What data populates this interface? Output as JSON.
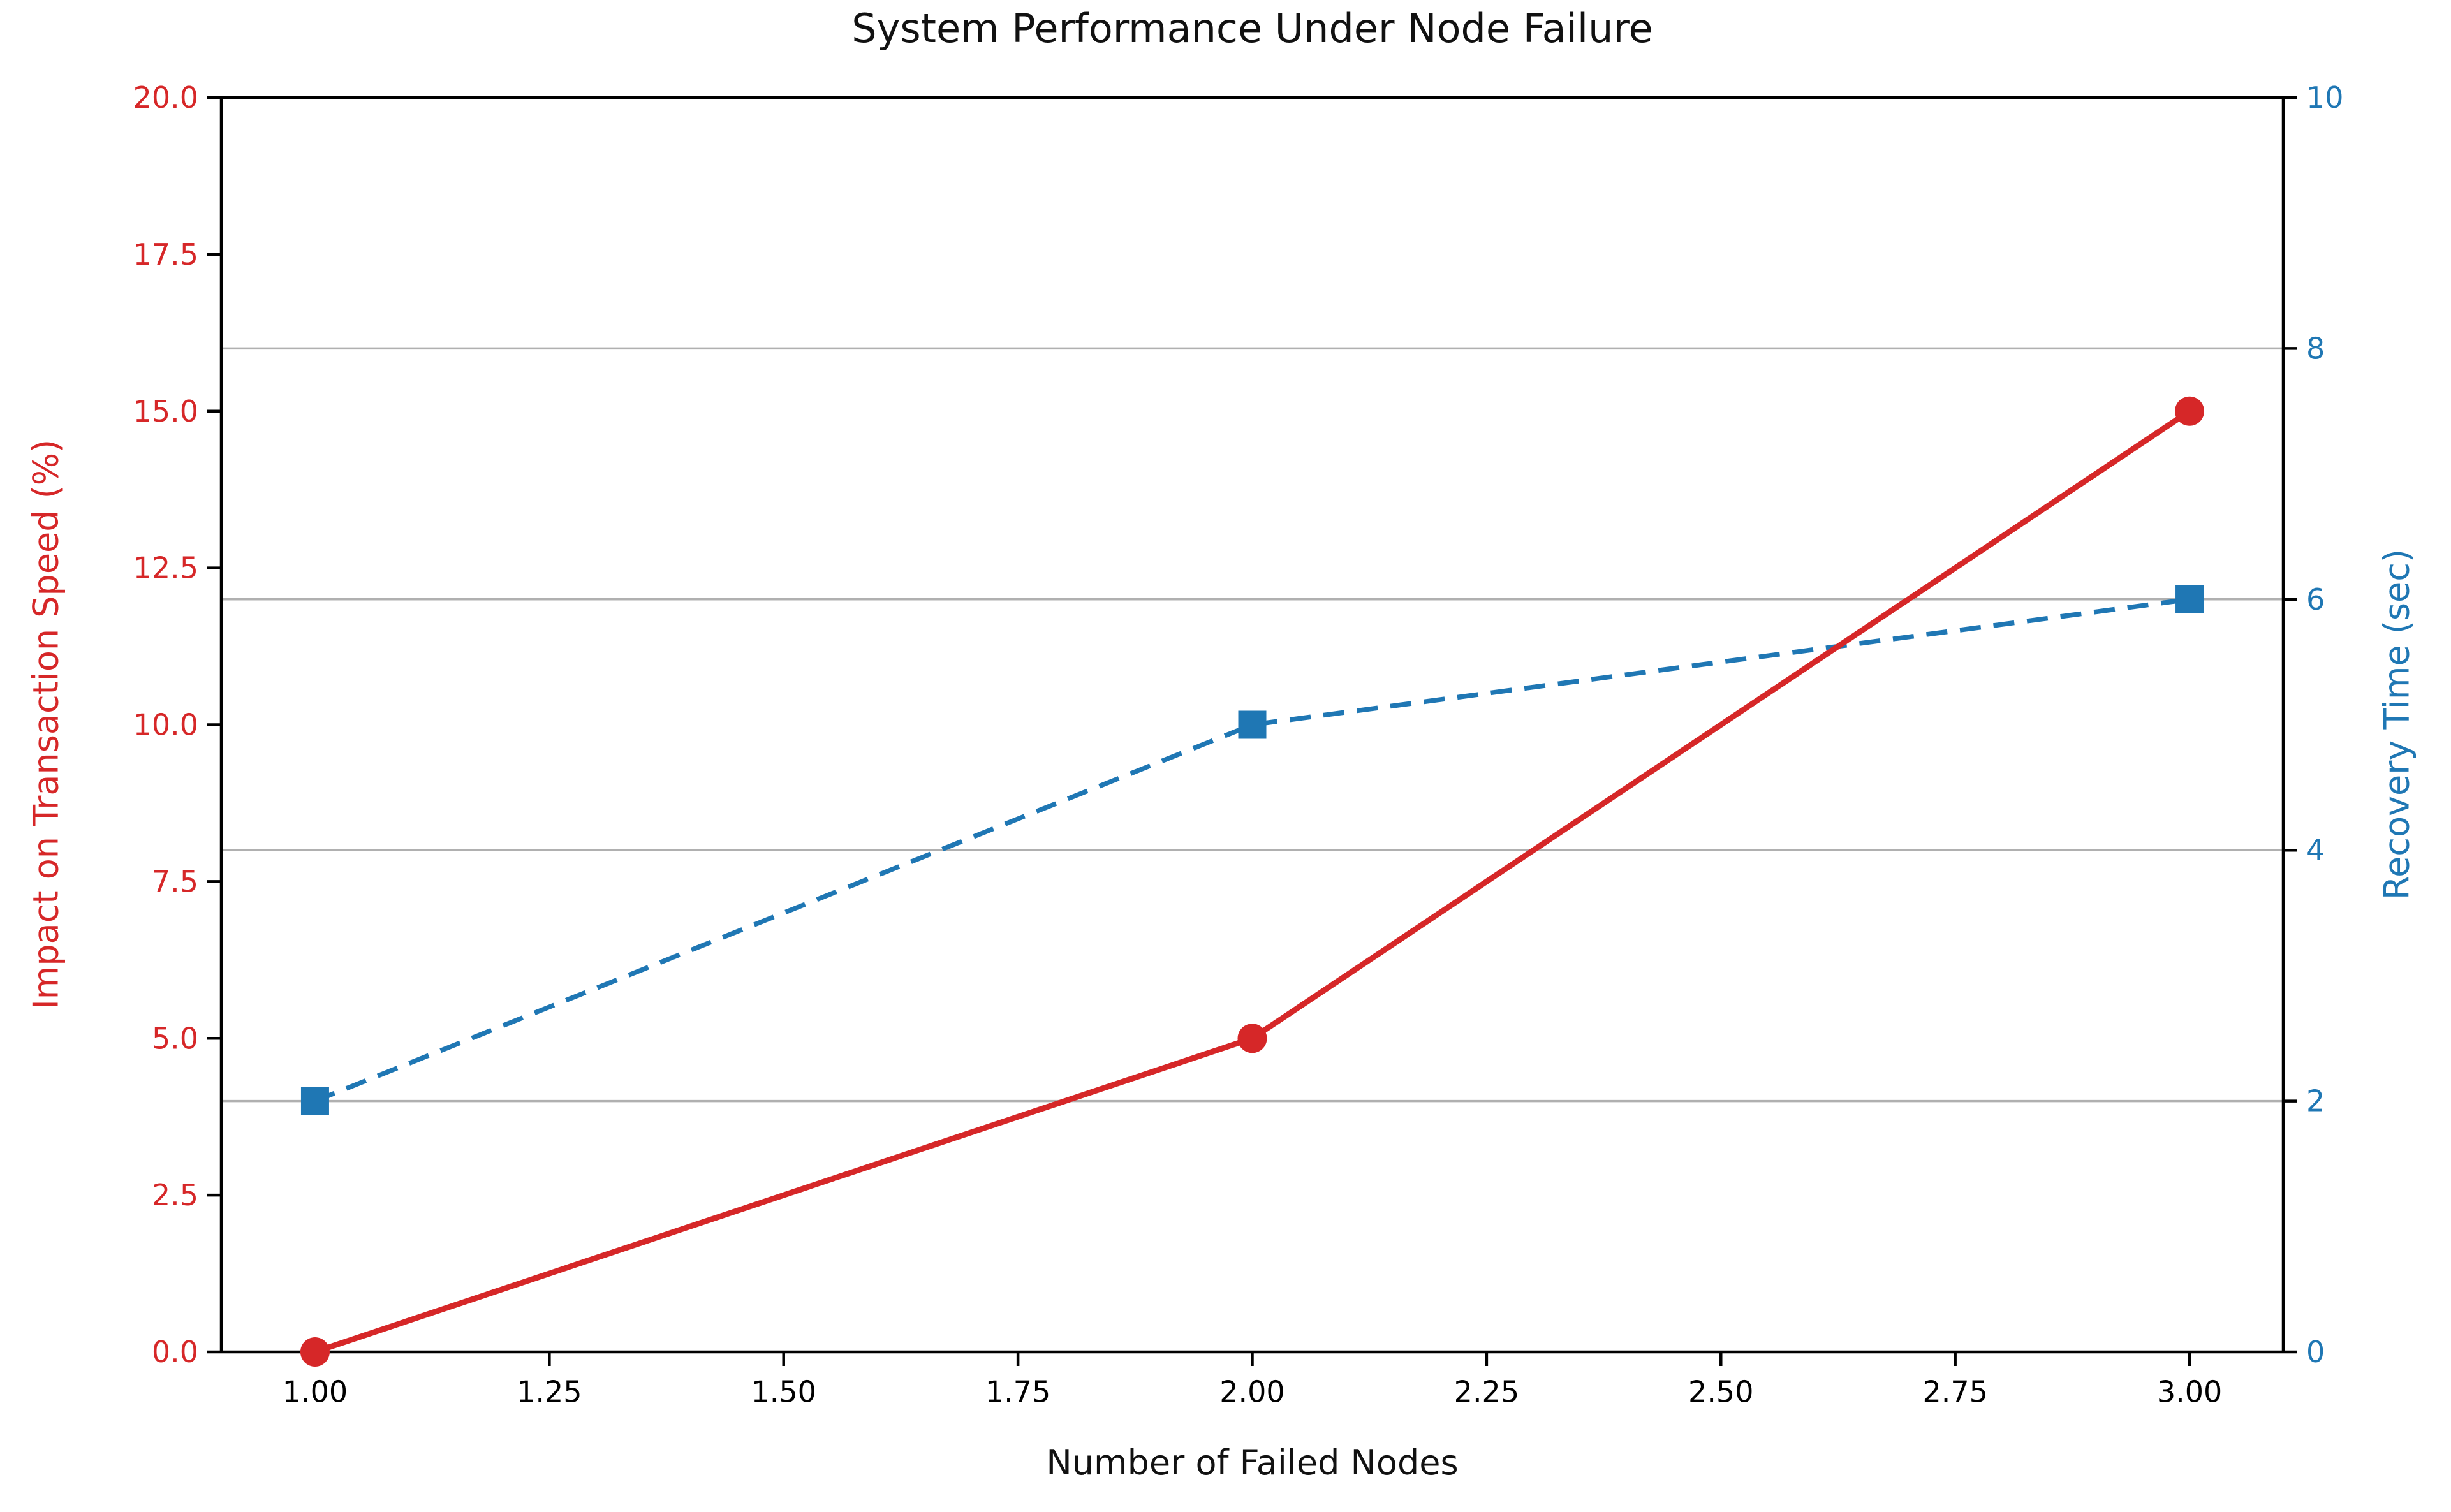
{
  "chart_data": {
    "type": "line",
    "title": "System Performance Under Node Failure",
    "xlabel": "Number of Failed Nodes",
    "x": [
      1,
      2,
      3
    ],
    "series": [
      {
        "name": "Impact on Transaction Speed (%)",
        "axis": "left",
        "values": [
          0,
          5,
          15
        ],
        "color": "#d62728",
        "style": "solid",
        "marker": "circle"
      },
      {
        "name": "Recovery Time (sec)",
        "axis": "right",
        "values": [
          2,
          5,
          6
        ],
        "color": "#1f77b4",
        "style": "dashed",
        "marker": "square"
      }
    ],
    "x_axis": {
      "range": [
        0.9,
        3.1
      ],
      "ticks": [
        "1.00",
        "1.25",
        "1.50",
        "1.75",
        "2.00",
        "2.25",
        "2.50",
        "2.75",
        "3.00"
      ],
      "tick_color": "#000000"
    },
    "left_axis": {
      "label": "Impact on Transaction Speed (%)",
      "range": [
        0,
        20
      ],
      "ticks": [
        "0.0",
        "2.5",
        "5.0",
        "7.5",
        "10.0",
        "12.5",
        "15.0",
        "17.5",
        "20.0"
      ],
      "color": "#d62728"
    },
    "right_axis": {
      "label": "Recovery Time (sec)",
      "range": [
        0,
        10
      ],
      "ticks": [
        "0",
        "2",
        "4",
        "6",
        "8",
        "10"
      ],
      "color": "#1f77b4"
    },
    "grid": {
      "on": true,
      "orientation": "horizontal",
      "right_axis_tick_values": [
        2,
        4,
        6,
        8
      ],
      "color": "#b0b0b0"
    },
    "legend": {
      "visible": false
    }
  }
}
